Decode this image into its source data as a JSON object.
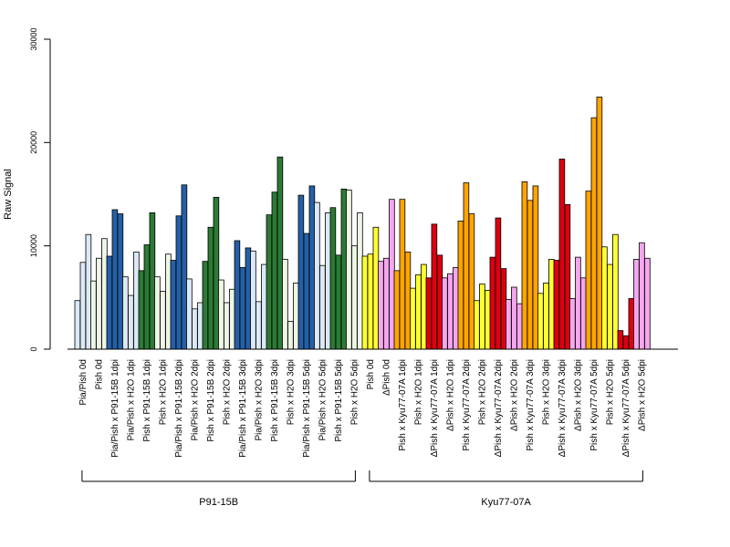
{
  "chart_data": {
    "type": "bar",
    "ylabel": "Raw Signal",
    "ylim": [
      0,
      30000
    ],
    "yticks": [
      "0",
      "10000",
      "20000",
      "30000"
    ],
    "categories": [
      "Pia/Pish 0d",
      "Pish 0d",
      "Pia/Pish x P91-15B 1dpi",
      "Pia/Pish x H2O 1dpi",
      "Pish x P91-15B 1dpi",
      "Pish x H2O 1dpi",
      "Pia/Pish x P91-15B 2dpi",
      "Pia/Pish x H2O 2dpi",
      "Pish x P91-15B 2dpi",
      "Pish x H2O 2dpi",
      "Pia/Pish x P91-15B 3dpi",
      "Pia/Pish x H2O 3dpi",
      "Pish x P91-15B 3dpi",
      "Pish x H2O 3dpi",
      "Pia/Pish x P91-15B 5dpi",
      "Pia/Pish x H2O 5dpi",
      "Pish x P91-15B 5dpi",
      "Pish x H2O 5dpi",
      "Pish 0d",
      "ΔPish 0d",
      "Pish x Kyu77-07A 1dpi",
      "Pish x H2O 1dpi",
      "ΔPish x Kyu77-07A 1dpi",
      "ΔPish x H2O 1dpi",
      "Pish x Kyu77-07A 2dpi",
      "Pish x H2O 2dpi",
      "ΔPish x Kyu77-07A 2dpi",
      "ΔPish x H2O 2dpi",
      "Pish x Kyu77-07A 3dpi",
      "Pish x H2O 3dpi",
      "ΔPish x Kyu77-07A 3dpi",
      "ΔPish x H2O 3dpi",
      "Pish x Kyu77-07A 5dpi",
      "Pish x H2O 5dpi",
      "ΔPish x Kyu77-07A 5dpi",
      "ΔPish x H2O 5dpi"
    ],
    "colors": [
      "#dce9f7",
      "#eef6e6",
      "#2460a7",
      "#dce9f7",
      "#2b7a35",
      "#eef6e6",
      "#2460a7",
      "#dce9f7",
      "#2b7a35",
      "#eef6e6",
      "#2460a7",
      "#dce9f7",
      "#2b7a35",
      "#eef6e6",
      "#2460a7",
      "#dce9f7",
      "#2b7a35",
      "#eef6e6",
      "#ffff33",
      "#f4a6ee",
      "#ffa500",
      "#ffff33",
      "#dd0011",
      "#f4a6ee",
      "#ffa500",
      "#ffff33",
      "#dd0011",
      "#f4a6ee",
      "#ffa500",
      "#ffff33",
      "#dd0011",
      "#f4a6ee",
      "#ffa500",
      "#ffff33",
      "#dd0011",
      "#f4a6ee"
    ],
    "values": [
      [
        4700,
        8400,
        11100
      ],
      [
        6600,
        8800,
        10700
      ],
      [
        9000,
        13500,
        13100
      ],
      [
        7000,
        5200,
        9400
      ],
      [
        7600,
        10100,
        13200
      ],
      [
        7000,
        5600,
        9200
      ],
      [
        8600,
        12900,
        15900
      ],
      [
        6800,
        3900,
        4500
      ],
      [
        8500,
        11800,
        14700
      ],
      [
        6700,
        4500,
        5800
      ],
      [
        10500,
        7900,
        9800
      ],
      [
        9500,
        4600,
        8200
      ],
      [
        13000,
        15200,
        18600
      ],
      [
        8700,
        2700,
        6400
      ],
      [
        14900,
        11200,
        15800
      ],
      [
        14200,
        8100,
        13200
      ],
      [
        13700,
        9100,
        15500
      ],
      [
        15400,
        10000,
        13200
      ],
      [
        9000,
        9200,
        11800
      ],
      [
        8500,
        8800,
        14500
      ],
      [
        7600,
        14500,
        9400
      ],
      [
        5900,
        7200,
        8200
      ],
      [
        6900,
        12100,
        9100
      ],
      [
        6900,
        7300,
        7900
      ],
      [
        12400,
        16100,
        13100
      ],
      [
        4700,
        6300,
        5700
      ],
      [
        8900,
        12700,
        7800
      ],
      [
        4800,
        6000,
        4400
      ],
      [
        16200,
        14400,
        15800
      ],
      [
        5400,
        6400,
        8700
      ],
      [
        8600,
        18400,
        14000
      ],
      [
        4900,
        8900,
        6900
      ],
      [
        15300,
        22400,
        24400
      ],
      [
        9900,
        8200,
        11100
      ],
      [
        1800,
        1300,
        4900
      ],
      [
        8700,
        10300,
        8800
      ]
    ],
    "groups": [
      {
        "label": "P91-15B",
        "start": 0,
        "end": 17
      },
      {
        "label": "Kyu77-07A",
        "start": 18,
        "end": 35
      }
    ]
  }
}
